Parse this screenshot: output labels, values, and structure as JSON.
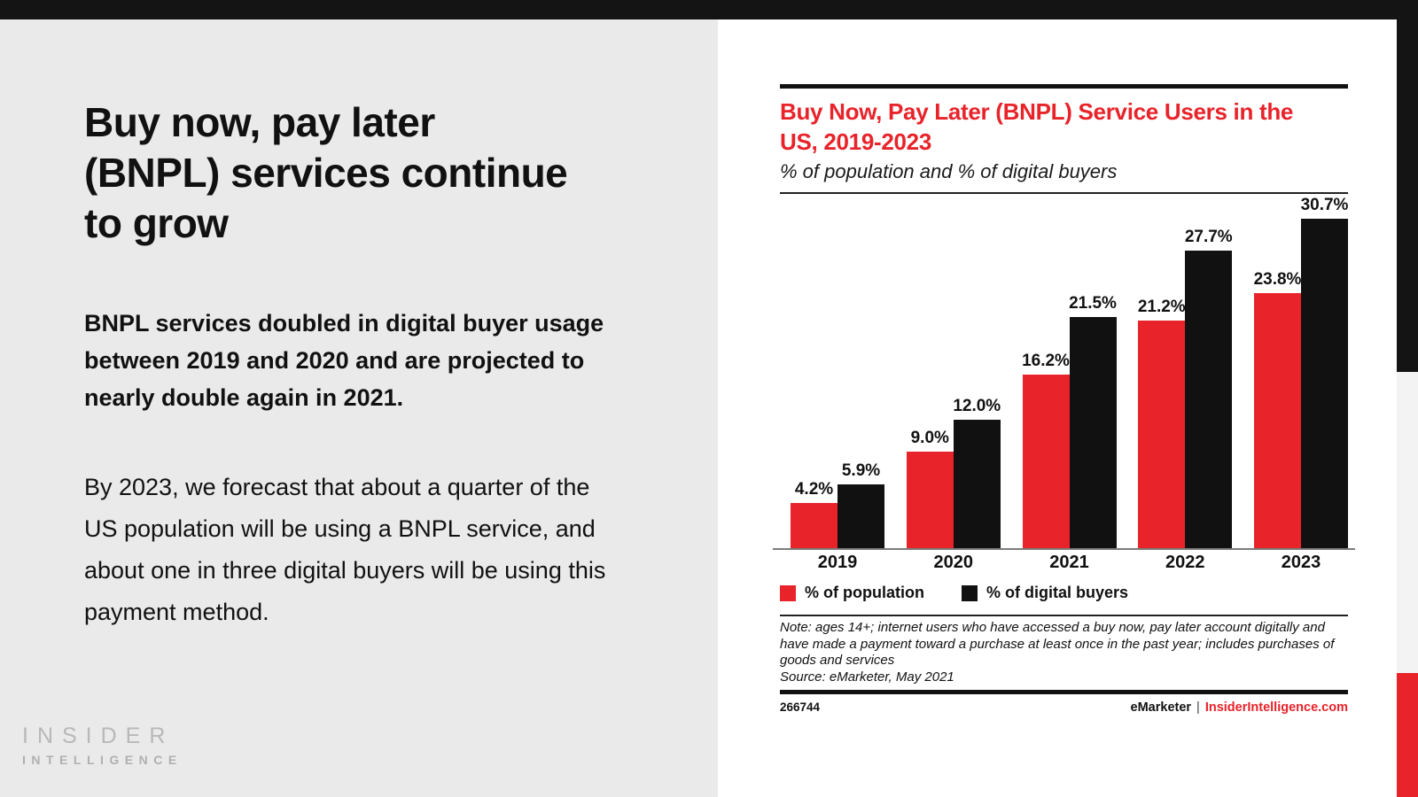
{
  "slide": {
    "title_lines": [
      "Buy now, pay later",
      "(BNPL) services continue",
      "to grow"
    ],
    "paragraph_bold": "BNPL services doubled in digital buyer usage between 2019 and 2020 and are projected to nearly double again in 2021.",
    "paragraph_regular": "By 2023, we forecast that about a quarter of the US population will be using a BNPL service, and about one in three digital buyers will be using this payment method.",
    "logo": {
      "line1": "INSIDER",
      "line2": "INTELLIGENCE"
    }
  },
  "chart": {
    "title_lines": [
      "Buy Now, Pay Later (BNPL) Service Users in the",
      "US, 2019-2023"
    ],
    "subtitle": "% of population and % of digital buyers",
    "note": "Note: ages 14+; internet users who have accessed a buy now, pay later account digitally and have made a payment toward a purchase at least once in the past year; includes purchases of goods and services",
    "source": "Source: eMarketer, May 2021",
    "footer": {
      "chart_id": "266744",
      "brand": "eMarketer",
      "separator": "|",
      "site": "InsiderIntelligence.com"
    }
  },
  "chart_data": {
    "type": "bar",
    "title": "Buy Now, Pay Later (BNPL) Service Users in the US, 2019-2023",
    "subtitle": "% of population and % of digital buyers",
    "categories": [
      "2019",
      "2020",
      "2021",
      "2022",
      "2023"
    ],
    "series": [
      {
        "name": "% of population",
        "color": "#e8232a",
        "values": [
          4.2,
          9.0,
          16.2,
          21.2,
          23.8
        ]
      },
      {
        "name": "% of digital buyers",
        "color": "#111111",
        "values": [
          5.9,
          12.0,
          21.5,
          27.7,
          30.7
        ]
      }
    ],
    "value_suffix": "%",
    "ylim": [
      0,
      33
    ],
    "grid": false,
    "legend_position": "bottom"
  },
  "colors": {
    "accent_red": "#e8232a",
    "bar_black": "#111111",
    "panel_gray": "#eaeaea",
    "strip_gray": "#f3f3f3",
    "logo_gray": "#b5b5b5"
  }
}
